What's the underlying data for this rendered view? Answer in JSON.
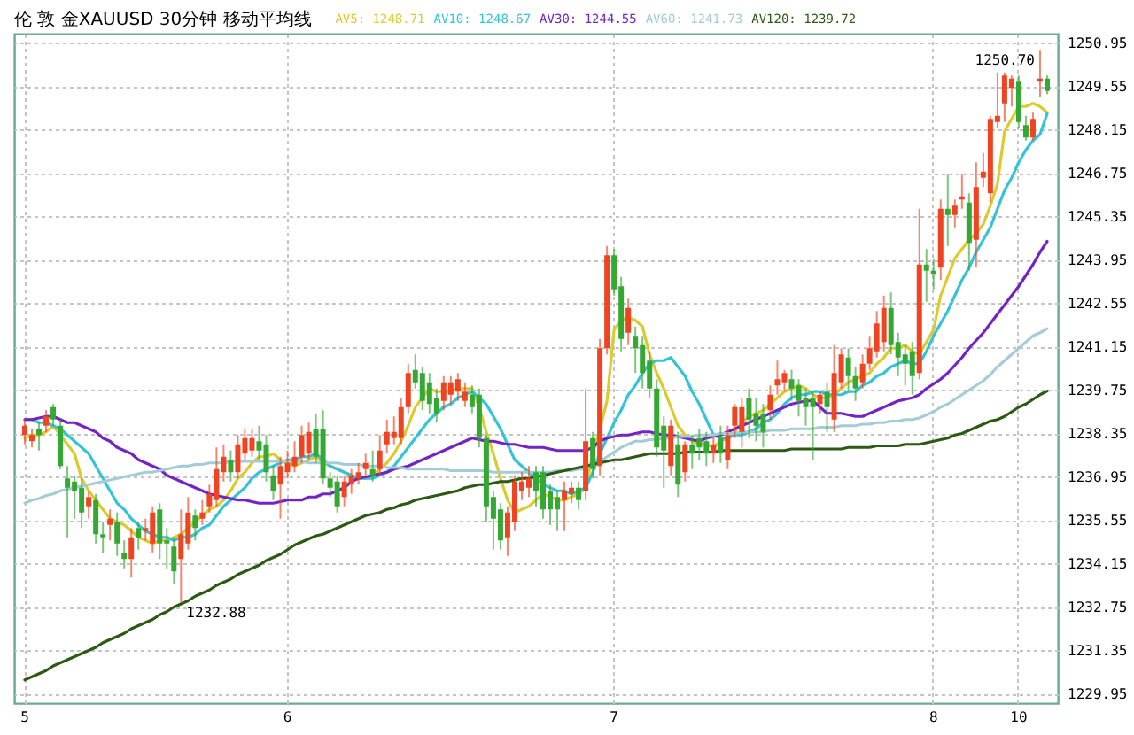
{
  "chart_data": {
    "type": "candlestick",
    "title": "伦 敦 金XAUUSD 30分钟 移动平均线",
    "categories": [
      "5",
      null,
      null,
      null,
      null,
      null,
      null,
      null,
      null,
      null,
      null,
      null,
      null,
      null,
      null,
      null,
      null,
      null,
      null,
      null,
      null,
      null,
      null,
      null,
      null,
      null,
      null,
      null,
      null,
      null,
      null,
      null,
      null,
      null,
      null,
      null,
      null,
      "6",
      null,
      null,
      null,
      null,
      null,
      null,
      null,
      null,
      null,
      null,
      null,
      null,
      null,
      null,
      null,
      null,
      null,
      null,
      null,
      null,
      null,
      null,
      null,
      null,
      null,
      null,
      null,
      null,
      null,
      null,
      null,
      null,
      null,
      null,
      null,
      null,
      null,
      null,
      null,
      null,
      null,
      null,
      null,
      null,
      null,
      "7",
      null,
      null,
      null,
      null,
      null,
      null,
      null,
      null,
      null,
      null,
      null,
      null,
      null,
      null,
      null,
      null,
      null,
      null,
      null,
      null,
      null,
      null,
      null,
      null,
      null,
      null,
      null,
      null,
      null,
      null,
      null,
      null,
      null,
      null,
      null,
      null,
      null,
      null,
      null,
      null,
      null,
      null,
      null,
      null,
      "8",
      null,
      null,
      null,
      null,
      null,
      null,
      null,
      null,
      null,
      null,
      null,
      "10",
      null,
      null,
      null,
      null
    ],
    "ohlc": [
      [
        1238.3,
        1238.8,
        1238.0,
        1238.6
      ],
      [
        1238.1,
        1238.5,
        1237.9,
        1238.3
      ],
      [
        1238.5,
        1238.7,
        1237.8,
        1238.3
      ],
      [
        1238.6,
        1239.1,
        1238.4,
        1238.9
      ],
      [
        1239.2,
        1239.3,
        1238.6,
        1238.8
      ],
      [
        1238.6,
        1238.8,
        1237.2,
        1237.3
      ],
      [
        1236.9,
        1237.3,
        1235.0,
        1236.6
      ],
      [
        1236.8,
        1237.0,
        1235.6,
        1236.5
      ],
      [
        1236.6,
        1236.9,
        1235.3,
        1235.8
      ],
      [
        1236.0,
        1236.5,
        1235.6,
        1236.3
      ],
      [
        1236.2,
        1236.4,
        1234.8,
        1235.1
      ],
      [
        1235.1,
        1235.5,
        1234.5,
        1235.0
      ],
      [
        1235.4,
        1235.9,
        1234.9,
        1235.6
      ],
      [
        1235.5,
        1235.8,
        1234.4,
        1234.8
      ],
      [
        1234.5,
        1234.9,
        1234.0,
        1234.3
      ],
      [
        1234.3,
        1235.3,
        1233.7,
        1235.0
      ],
      [
        1235.3,
        1235.5,
        1234.6,
        1235.0
      ],
      [
        1235.2,
        1235.6,
        1234.9,
        1235.3
      ],
      [
        1234.8,
        1236.0,
        1234.5,
        1235.8
      ],
      [
        1235.9,
        1236.1,
        1234.3,
        1234.8
      ],
      [
        1234.9,
        1235.3,
        1234.0,
        1234.8
      ],
      [
        1234.7,
        1235.0,
        1233.5,
        1233.9
      ],
      [
        1234.3,
        1235.9,
        1232.88,
        1235.1
      ],
      [
        1234.8,
        1236.3,
        1234.6,
        1235.8
      ],
      [
        1235.7,
        1235.9,
        1234.9,
        1235.3
      ],
      [
        1235.6,
        1236.2,
        1235.4,
        1235.8
      ],
      [
        1236.0,
        1236.7,
        1235.8,
        1236.4
      ],
      [
        1236.2,
        1237.9,
        1236.0,
        1237.2
      ],
      [
        1237.1,
        1238.0,
        1236.8,
        1237.6
      ],
      [
        1237.5,
        1237.8,
        1236.8,
        1237.1
      ],
      [
        1237.1,
        1238.3,
        1236.9,
        1238.0
      ],
      [
        1237.7,
        1238.5,
        1237.5,
        1238.2
      ],
      [
        1237.8,
        1238.5,
        1237.6,
        1238.2
      ],
      [
        1238.1,
        1238.6,
        1237.5,
        1237.8
      ],
      [
        1238.0,
        1238.3,
        1236.8,
        1237.1
      ],
      [
        1237.0,
        1237.3,
        1236.2,
        1236.5
      ],
      [
        1236.7,
        1237.6,
        1235.6,
        1237.3
      ],
      [
        1237.1,
        1237.8,
        1236.9,
        1237.4
      ],
      [
        1237.3,
        1238.1,
        1237.1,
        1237.6
      ],
      [
        1237.6,
        1238.6,
        1237.4,
        1238.3
      ],
      [
        1237.7,
        1238.7,
        1237.5,
        1238.4
      ],
      [
        1238.5,
        1239.0,
        1237.4,
        1237.6
      ],
      [
        1238.5,
        1239.1,
        1236.7,
        1236.9
      ],
      [
        1236.9,
        1237.1,
        1236.3,
        1236.6
      ],
      [
        1236.8,
        1237.0,
        1235.8,
        1236.0
      ],
      [
        1236.3,
        1237.0,
        1236.0,
        1236.8
      ],
      [
        1236.7,
        1237.2,
        1236.4,
        1237.0
      ],
      [
        1236.9,
        1237.4,
        1236.7,
        1237.1
      ],
      [
        1237.2,
        1237.7,
        1237.0,
        1237.4
      ],
      [
        1237.2,
        1237.8,
        1236.8,
        1237.0
      ],
      [
        1237.2,
        1238.3,
        1237.0,
        1237.8
      ],
      [
        1238.0,
        1238.8,
        1237.7,
        1238.4
      ],
      [
        1238.2,
        1238.9,
        1238.0,
        1238.4
      ],
      [
        1238.2,
        1239.5,
        1238.0,
        1239.2
      ],
      [
        1239.2,
        1240.6,
        1239.0,
        1240.3
      ],
      [
        1240.4,
        1240.9,
        1239.8,
        1240.0
      ],
      [
        1240.3,
        1240.5,
        1239.1,
        1239.4
      ],
      [
        1240.0,
        1240.3,
        1239.0,
        1239.3
      ],
      [
        1239.5,
        1239.8,
        1238.7,
        1239.0
      ],
      [
        1239.4,
        1240.2,
        1239.1,
        1240.0
      ],
      [
        1239.6,
        1240.2,
        1239.3,
        1240.0
      ],
      [
        1239.7,
        1240.3,
        1239.4,
        1240.1
      ],
      [
        1239.4,
        1240.0,
        1239.2,
        1239.7
      ],
      [
        1239.6,
        1239.9,
        1239.0,
        1239.2
      ],
      [
        1239.6,
        1239.8,
        1237.9,
        1238.2
      ],
      [
        1238.2,
        1238.3,
        1235.5,
        1236.0
      ],
      [
        1236.3,
        1236.5,
        1234.6,
        1235.6
      ],
      [
        1235.9,
        1236.1,
        1234.6,
        1234.9
      ],
      [
        1235.0,
        1236.0,
        1234.4,
        1235.8
      ],
      [
        1235.5,
        1237.0,
        1235.2,
        1236.8
      ],
      [
        1236.5,
        1237.1,
        1236.2,
        1236.8
      ],
      [
        1236.6,
        1237.3,
        1236.3,
        1236.9
      ],
      [
        1237.1,
        1237.3,
        1236.0,
        1236.5
      ],
      [
        1237.1,
        1237.3,
        1235.6,
        1235.9
      ],
      [
        1236.5,
        1236.7,
        1235.4,
        1235.9
      ],
      [
        1236.3,
        1236.5,
        1235.2,
        1235.9
      ],
      [
        1236.2,
        1236.8,
        1235.2,
        1236.5
      ],
      [
        1236.4,
        1236.8,
        1236.1,
        1236.6
      ],
      [
        1236.6,
        1236.8,
        1235.9,
        1236.2
      ],
      [
        1236.5,
        1239.8,
        1236.2,
        1238.1
      ],
      [
        1238.2,
        1238.4,
        1236.9,
        1237.2
      ],
      [
        1237.3,
        1241.4,
        1237.0,
        1241.1
      ],
      [
        1241.1,
        1244.4,
        1240.9,
        1244.1
      ],
      [
        1244.1,
        1244.3,
        1242.8,
        1243.0
      ],
      [
        1243.1,
        1243.4,
        1241.0,
        1241.4
      ],
      [
        1241.6,
        1242.7,
        1241.2,
        1242.4
      ],
      [
        1241.5,
        1241.8,
        1240.3,
        1241.1
      ],
      [
        1241.2,
        1241.5,
        1239.8,
        1240.3
      ],
      [
        1240.7,
        1241.0,
        1239.5,
        1239.8
      ],
      [
        1239.8,
        1240.1,
        1237.6,
        1237.9
      ],
      [
        1238.6,
        1238.9,
        1236.6,
        1237.8
      ],
      [
        1237.3,
        1238.8,
        1237.0,
        1238.6
      ],
      [
        1238.0,
        1238.4,
        1236.3,
        1236.7
      ],
      [
        1237.1,
        1238.1,
        1236.8,
        1238.0
      ],
      [
        1238.0,
        1238.3,
        1237.2,
        1237.7
      ],
      [
        1238.2,
        1238.5,
        1237.5,
        1237.9
      ],
      [
        1238.1,
        1238.4,
        1237.3,
        1237.7
      ],
      [
        1237.7,
        1238.2,
        1237.4,
        1238.0
      ],
      [
        1238.2,
        1238.6,
        1237.4,
        1237.7
      ],
      [
        1237.5,
        1238.6,
        1237.2,
        1238.3
      ],
      [
        1238.6,
        1239.3,
        1238.2,
        1239.2
      ],
      [
        1238.4,
        1239.5,
        1237.9,
        1239.2
      ],
      [
        1239.5,
        1239.8,
        1238.2,
        1238.8
      ],
      [
        1239.0,
        1239.5,
        1238.1,
        1238.6
      ],
      [
        1239.0,
        1239.3,
        1237.9,
        1238.4
      ],
      [
        1239.1,
        1239.9,
        1238.8,
        1239.6
      ],
      [
        1239.9,
        1240.7,
        1239.6,
        1240.1
      ],
      [
        1240.0,
        1240.4,
        1239.7,
        1240.3
      ],
      [
        1240.1,
        1240.4,
        1239.4,
        1239.8
      ],
      [
        1239.9,
        1240.1,
        1238.9,
        1239.4
      ],
      [
        1239.5,
        1239.8,
        1238.6,
        1239.2
      ],
      [
        1239.5,
        1239.7,
        1237.5,
        1239.2
      ],
      [
        1239.3,
        1239.7,
        1239.0,
        1239.6
      ],
      [
        1239.7,
        1240.0,
        1238.4,
        1239.2
      ],
      [
        1238.8,
        1241.2,
        1238.4,
        1240.3
      ],
      [
        1240.0,
        1241.1,
        1239.8,
        1240.9
      ],
      [
        1240.8,
        1241.1,
        1239.7,
        1240.2
      ],
      [
        1240.2,
        1240.5,
        1239.4,
        1239.8
      ],
      [
        1240.0,
        1240.9,
        1239.8,
        1240.6
      ],
      [
        1240.6,
        1241.5,
        1240.4,
        1241.1
      ],
      [
        1241.0,
        1242.3,
        1240.8,
        1241.9
      ],
      [
        1241.3,
        1242.8,
        1241.0,
        1242.4
      ],
      [
        1242.4,
        1242.9,
        1240.9,
        1241.2
      ],
      [
        1241.3,
        1241.6,
        1240.2,
        1240.8
      ],
      [
        1240.9,
        1241.2,
        1239.9,
        1240.6
      ],
      [
        1241.0,
        1241.3,
        1239.6,
        1240.2
      ],
      [
        1240.3,
        1245.6,
        1240.1,
        1243.8
      ],
      [
        1243.8,
        1244.3,
        1242.6,
        1243.6
      ],
      [
        1243.6,
        1244.0,
        1243.0,
        1243.5
      ],
      [
        1243.7,
        1245.9,
        1243.3,
        1245.6
      ],
      [
        1245.6,
        1246.7,
        1244.4,
        1245.4
      ],
      [
        1245.4,
        1245.9,
        1245.0,
        1245.7
      ],
      [
        1245.9,
        1246.7,
        1245.6,
        1246.0
      ],
      [
        1245.8,
        1246.1,
        1243.6,
        1244.5
      ],
      [
        1244.6,
        1247.1,
        1243.7,
        1246.3
      ],
      [
        1246.6,
        1247.4,
        1246.3,
        1246.8
      ],
      [
        1246.1,
        1248.6,
        1245.8,
        1248.5
      ],
      [
        1248.4,
        1250.0,
        1248.2,
        1248.6
      ],
      [
        1249.0,
        1250.0,
        1248.4,
        1249.9
      ],
      [
        1249.5,
        1249.9,
        1248.9,
        1249.8
      ],
      [
        1249.7,
        1249.9,
        1248.2,
        1248.4
      ],
      [
        1248.3,
        1248.6,
        1247.8,
        1247.9
      ],
      [
        1247.9,
        1248.7,
        1247.8,
        1248.5
      ],
      [
        1249.7,
        1250.7,
        1249.2,
        1249.8
      ],
      [
        1249.8,
        1249.9,
        1249.3,
        1249.4
      ]
    ],
    "colors": [
      "#ee4422",
      "#ee4422",
      "#33a833",
      "#ee4422",
      "#33a833",
      "#33a833",
      "#33a833",
      "#33a833",
      "#33a833",
      "#ee4422",
      "#33a833",
      "#33a833",
      "#ee4422",
      "#33a833",
      "#33a833",
      "#ee4422",
      "#33a833",
      "#ee4422",
      "#ee4422",
      "#33a833",
      "#33a833",
      "#33a833",
      "#ee4422",
      "#ee4422",
      "#33a833",
      "#ee4422",
      "#ee4422",
      "#ee4422",
      "#ee4422",
      "#33a833",
      "#ee4422",
      "#ee4422",
      "#ee4422",
      "#33a833",
      "#33a833",
      "#33a833",
      "#ee4422",
      "#ee4422",
      "#ee4422",
      "#ee4422",
      "#ee4422",
      "#33a833",
      "#33a833",
      "#33a833",
      "#33a833",
      "#ee4422",
      "#ee4422",
      "#ee4422",
      "#ee4422",
      "#33a833",
      "#ee4422",
      "#ee4422",
      "#ee4422",
      "#ee4422",
      "#ee4422",
      "#33a833",
      "#33a833",
      "#33a833",
      "#33a833",
      "#ee4422",
      "#ee4422",
      "#ee4422",
      "#ee4422",
      "#33a833",
      "#33a833",
      "#33a833",
      "#33a833",
      "#33a833",
      "#ee4422",
      "#ee4422",
      "#ee4422",
      "#ee4422",
      "#33a833",
      "#33a833",
      "#33a833",
      "#33a833",
      "#ee4422",
      "#ee4422",
      "#33a833",
      "#ee4422",
      "#33a833",
      "#ee4422",
      "#ee4422",
      "#33a833",
      "#33a833",
      "#ee4422",
      "#33a833",
      "#33a833",
      "#33a833",
      "#33a833",
      "#33a833",
      "#ee4422",
      "#33a833",
      "#ee4422",
      "#33a833",
      "#33a833",
      "#33a833",
      "#ee4422",
      "#33a833",
      "#ee4422",
      "#ee4422",
      "#ee4422",
      "#33a833",
      "#33a833",
      "#33a833",
      "#ee4422",
      "#ee4422",
      "#ee4422",
      "#33a833",
      "#33a833",
      "#33a833",
      "#33a833",
      "#ee4422",
      "#33a833",
      "#ee4422",
      "#ee4422",
      "#33a833",
      "#33a833",
      "#ee4422",
      "#ee4422",
      "#ee4422",
      "#ee4422",
      "#33a833",
      "#33a833",
      "#33a833",
      "#33a833",
      "#ee4422",
      "#33a833",
      "#33a833",
      "#ee4422",
      "#33a833",
      "#ee4422",
      "#ee4422",
      "#33a833",
      "#ee4422",
      "#ee4422",
      "#ee4422",
      "#ee4422",
      "#ee4422",
      "#ee4422",
      "#33a833",
      "#33a833",
      "#ee4422",
      "#ee4422",
      "#33a833"
    ],
    "series": [
      {
        "name": "AV5: 1248.71",
        "type": "line",
        "color": "#dccb2e",
        "values": [
          1238.2,
          1238.3,
          1238.3,
          1238.4,
          1238.6,
          1238.3,
          1238.0,
          1237.7,
          1236.9,
          1236.5,
          1236.2,
          1235.9,
          1235.6,
          1235.5,
          1235.4,
          1235.2,
          1235.0,
          1234.9,
          1234.8,
          1234.9,
          1234.9,
          1235.0,
          1235.1,
          1235.3,
          1235.5,
          1235.7,
          1235.9,
          1236.0,
          1236.2,
          1236.5,
          1236.9,
          1237.1,
          1237.4,
          1237.6,
          1237.6,
          1237.7,
          1237.5,
          1237.4,
          1237.3,
          1237.4,
          1237.5,
          1237.6,
          1237.4,
          1237.3,
          1237.2,
          1237.1,
          1237.0,
          1236.9,
          1236.9,
          1237.0,
          1237.2,
          1237.4,
          1237.7,
          1238.1,
          1238.6,
          1239.2,
          1239.5,
          1239.8,
          1239.7,
          1239.7,
          1239.7,
          1239.8,
          1239.8,
          1239.8,
          1239.2,
          1238.4,
          1237.7,
          1236.9,
          1236.2,
          1235.8,
          1235.9,
          1236.0,
          1236.2,
          1236.4,
          1236.3,
          1236.2,
          1236.2,
          1236.3,
          1236.4,
          1236.6,
          1237.7,
          1238.5,
          1239.4,
          1241.7,
          1242.0,
          1242.1,
          1242.0,
          1241.8,
          1240.9,
          1240.3,
          1239.8,
          1239.2,
          1238.6,
          1238.3,
          1238.1,
          1238.0,
          1238.0,
          1237.9,
          1238.1,
          1238.2,
          1238.4,
          1238.7,
          1238.9,
          1239.0,
          1239.1,
          1239.3,
          1239.5,
          1239.7,
          1239.8,
          1239.9,
          1239.8,
          1239.6,
          1239.5,
          1239.5,
          1239.6,
          1239.8,
          1240.0,
          1240.1,
          1240.2,
          1240.3,
          1240.6,
          1240.8,
          1241.1,
          1241.1,
          1241.2,
          1241.0,
          1240.9,
          1241.3,
          1241.7,
          1242.8,
          1243.4,
          1244.0,
          1244.3,
          1244.6,
          1244.8,
          1245.1,
          1245.7,
          1246.4,
          1248.1,
          1248.5,
          1248.9,
          1248.9,
          1249.0,
          1248.9,
          1248.71
        ]
      },
      {
        "name": "AV10: 1248.67",
        "type": "line",
        "color": "#35c3d8",
        "values": [
          1238.8,
          1238.8,
          1238.7,
          1238.7,
          1238.6,
          1238.5,
          1238.3,
          1238.1,
          1237.9,
          1237.7,
          1237.3,
          1236.9,
          1236.5,
          1236.1,
          1235.9,
          1235.6,
          1235.4,
          1235.2,
          1235.1,
          1235.0,
          1235.0,
          1234.9,
          1235.0,
          1235.0,
          1235.1,
          1235.3,
          1235.4,
          1235.7,
          1236.0,
          1236.2,
          1236.4,
          1236.6,
          1236.9,
          1237.1,
          1237.2,
          1237.3,
          1237.4,
          1237.5,
          1237.5,
          1237.6,
          1237.6,
          1237.7,
          1237.5,
          1237.3,
          1237.2,
          1237.1,
          1237.0,
          1236.9,
          1236.9,
          1236.9,
          1237.0,
          1237.1,
          1237.3,
          1237.6,
          1237.9,
          1238.2,
          1238.5,
          1238.8,
          1239.0,
          1239.2,
          1239.3,
          1239.5,
          1239.6,
          1239.7,
          1239.5,
          1239.3,
          1238.9,
          1238.5,
          1238.0,
          1237.5,
          1237.3,
          1237.1,
          1236.9,
          1236.7,
          1236.6,
          1236.5,
          1236.5,
          1236.4,
          1236.5,
          1236.6,
          1237.1,
          1237.7,
          1238.2,
          1238.7,
          1239.1,
          1239.6,
          1239.9,
          1240.3,
          1240.6,
          1240.7,
          1240.7,
          1240.8,
          1240.5,
          1240.2,
          1239.7,
          1239.3,
          1238.8,
          1238.3,
          1238.2,
          1238.2,
          1238.3,
          1238.3,
          1238.4,
          1238.5,
          1238.7,
          1238.8,
          1239.0,
          1239.3,
          1239.5,
          1239.6,
          1239.6,
          1239.7,
          1239.7,
          1239.6,
          1239.6,
          1239.6,
          1239.7,
          1239.7,
          1239.9,
          1240.0,
          1240.2,
          1240.3,
          1240.5,
          1240.6,
          1240.7,
          1240.6,
          1240.6,
          1241.0,
          1241.5,
          1241.9,
          1242.3,
          1242.8,
          1243.3,
          1243.7,
          1244.2,
          1244.6,
          1245.0,
          1245.6,
          1246.2,
          1246.6,
          1247.1,
          1247.5,
          1247.8,
          1248.0,
          1248.67
        ]
      },
      {
        "name": "AV30: 1244.55",
        "type": "line",
        "color": "#7424c4",
        "values": [
          1238.8,
          1238.8,
          1238.85,
          1238.9,
          1238.9,
          1238.8,
          1238.7,
          1238.7,
          1238.6,
          1238.5,
          1238.4,
          1238.2,
          1238.1,
          1237.9,
          1237.8,
          1237.7,
          1237.5,
          1237.4,
          1237.3,
          1237.2,
          1237.0,
          1236.9,
          1236.8,
          1236.7,
          1236.6,
          1236.5,
          1236.4,
          1236.35,
          1236.3,
          1236.25,
          1236.2,
          1236.2,
          1236.15,
          1236.1,
          1236.1,
          1236.1,
          1236.15,
          1236.2,
          1236.2,
          1236.2,
          1236.3,
          1236.3,
          1236.4,
          1236.4,
          1236.5,
          1236.6,
          1236.8,
          1236.9,
          1236.95,
          1237.0,
          1237.05,
          1237.1,
          1237.2,
          1237.25,
          1237.3,
          1237.4,
          1237.5,
          1237.6,
          1237.7,
          1237.8,
          1237.9,
          1238.0,
          1238.1,
          1238.2,
          1238.15,
          1238.1,
          1238.1,
          1238.05,
          1238.0,
          1238.0,
          1237.95,
          1237.9,
          1237.9,
          1237.9,
          1237.85,
          1237.8,
          1237.8,
          1237.8,
          1237.8,
          1237.8,
          1237.9,
          1238.1,
          1238.2,
          1238.25,
          1238.3,
          1238.3,
          1238.35,
          1238.4,
          1238.4,
          1238.35,
          1238.3,
          1238.3,
          1238.25,
          1238.2,
          1238.15,
          1238.1,
          1238.2,
          1238.25,
          1238.3,
          1238.4,
          1238.5,
          1238.6,
          1238.7,
          1238.8,
          1238.9,
          1239.0,
          1239.1,
          1239.2,
          1239.3,
          1239.35,
          1239.4,
          1239.4,
          1239.2,
          1239.0,
          1239.0,
          1239.0,
          1238.95,
          1238.9,
          1238.9,
          1239.0,
          1239.1,
          1239.2,
          1239.3,
          1239.4,
          1239.45,
          1239.5,
          1239.6,
          1239.8,
          1239.95,
          1240.1,
          1240.3,
          1240.55,
          1240.8,
          1241.1,
          1241.35,
          1241.6,
          1241.9,
          1242.2,
          1242.5,
          1242.8,
          1243.1,
          1243.45,
          1243.8,
          1244.2,
          1244.55
        ]
      },
      {
        "name": "AV60: 1241.73",
        "type": "line",
        "color": "#a4ccd6",
        "values": [
          1236.1,
          1236.2,
          1236.25,
          1236.35,
          1236.4,
          1236.5,
          1236.55,
          1236.6,
          1236.65,
          1236.7,
          1236.75,
          1236.8,
          1236.85,
          1236.9,
          1236.95,
          1237.0,
          1237.05,
          1237.1,
          1237.1,
          1237.15,
          1237.2,
          1237.25,
          1237.3,
          1237.3,
          1237.35,
          1237.35,
          1237.4,
          1237.4,
          1237.4,
          1237.45,
          1237.45,
          1237.45,
          1237.45,
          1237.45,
          1237.45,
          1237.45,
          1237.45,
          1237.45,
          1237.45,
          1237.45,
          1237.4,
          1237.4,
          1237.4,
          1237.4,
          1237.4,
          1237.35,
          1237.35,
          1237.35,
          1237.3,
          1237.3,
          1237.3,
          1237.25,
          1237.25,
          1237.25,
          1237.2,
          1237.2,
          1237.2,
          1237.2,
          1237.2,
          1237.2,
          1237.15,
          1237.15,
          1237.15,
          1237.15,
          1237.15,
          1237.15,
          1237.1,
          1237.1,
          1237.1,
          1237.1,
          1237.1,
          1237.1,
          1237.1,
          1237.1,
          1237.1,
          1237.15,
          1237.15,
          1237.15,
          1237.2,
          1237.2,
          1237.3,
          1237.45,
          1237.6,
          1237.75,
          1237.9,
          1238.0,
          1238.1,
          1238.1,
          1238.15,
          1238.15,
          1238.2,
          1238.2,
          1238.25,
          1238.25,
          1238.25,
          1238.3,
          1238.3,
          1238.3,
          1238.35,
          1238.35,
          1238.35,
          1238.4,
          1238.4,
          1238.4,
          1238.4,
          1238.45,
          1238.45,
          1238.45,
          1238.5,
          1238.5,
          1238.5,
          1238.5,
          1238.55,
          1238.55,
          1238.55,
          1238.6,
          1238.6,
          1238.6,
          1238.65,
          1238.65,
          1238.7,
          1238.7,
          1238.75,
          1238.75,
          1238.8,
          1238.8,
          1238.85,
          1238.95,
          1239.05,
          1239.2,
          1239.3,
          1239.45,
          1239.6,
          1239.75,
          1239.9,
          1240.05,
          1240.25,
          1240.5,
          1240.7,
          1240.9,
          1241.1,
          1241.3,
          1241.5,
          1241.6,
          1241.73
        ]
      },
      {
        "name": "AV120: 1239.72",
        "type": "line",
        "color": "#2d5a12",
        "values": [
          1230.4,
          1230.5,
          1230.6,
          1230.7,
          1230.85,
          1230.95,
          1231.05,
          1231.15,
          1231.25,
          1231.35,
          1231.45,
          1231.6,
          1231.7,
          1231.8,
          1231.9,
          1232.05,
          1232.15,
          1232.25,
          1232.35,
          1232.5,
          1232.6,
          1232.75,
          1232.85,
          1232.95,
          1233.1,
          1233.2,
          1233.3,
          1233.45,
          1233.55,
          1233.65,
          1233.8,
          1233.9,
          1234.0,
          1234.1,
          1234.25,
          1234.35,
          1234.45,
          1234.6,
          1234.75,
          1234.85,
          1234.95,
          1235.05,
          1235.1,
          1235.2,
          1235.3,
          1235.4,
          1235.5,
          1235.6,
          1235.7,
          1235.75,
          1235.8,
          1235.9,
          1235.95,
          1236.05,
          1236.1,
          1236.2,
          1236.25,
          1236.3,
          1236.35,
          1236.4,
          1236.45,
          1236.5,
          1236.6,
          1236.65,
          1236.7,
          1236.7,
          1236.75,
          1236.8,
          1236.8,
          1236.85,
          1236.9,
          1236.9,
          1236.95,
          1237.0,
          1237.05,
          1237.1,
          1237.15,
          1237.2,
          1237.25,
          1237.3,
          1237.35,
          1237.4,
          1237.45,
          1237.5,
          1237.5,
          1237.55,
          1237.6,
          1237.65,
          1237.7,
          1237.7,
          1237.7,
          1237.7,
          1237.7,
          1237.75,
          1237.75,
          1237.75,
          1237.75,
          1237.75,
          1237.8,
          1237.8,
          1237.8,
          1237.8,
          1237.8,
          1237.8,
          1237.8,
          1237.8,
          1237.8,
          1237.8,
          1237.85,
          1237.85,
          1237.85,
          1237.85,
          1237.85,
          1237.85,
          1237.85,
          1237.85,
          1237.9,
          1237.9,
          1237.9,
          1237.9,
          1237.95,
          1237.95,
          1237.95,
          1237.95,
          1238.0,
          1238.0,
          1238.0,
          1238.05,
          1238.1,
          1238.15,
          1238.2,
          1238.3,
          1238.35,
          1238.45,
          1238.55,
          1238.65,
          1238.75,
          1238.8,
          1238.9,
          1239.05,
          1239.2,
          1239.3,
          1239.45,
          1239.6,
          1239.72
        ]
      }
    ],
    "ylim": [
      1229.65,
      1251.25
    ],
    "yticks": [
      1229.95,
      1231.35,
      1232.75,
      1234.15,
      1235.55,
      1236.95,
      1238.35,
      1239.75,
      1241.15,
      1242.55,
      1243.95,
      1245.35,
      1246.75,
      1248.15,
      1249.55,
      1250.95
    ],
    "grid": true,
    "legend": "top",
    "annotations": [
      "1250.70",
      "1232.88"
    ]
  }
}
